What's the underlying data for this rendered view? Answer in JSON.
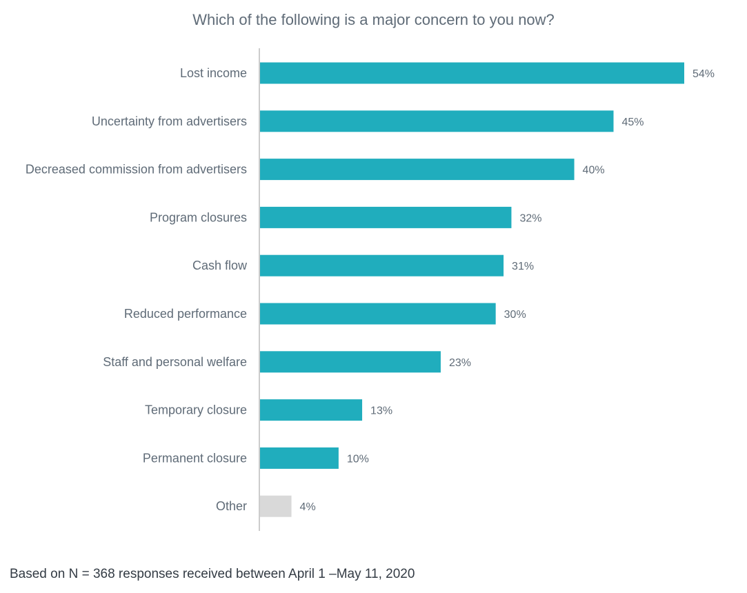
{
  "chart_data": {
    "type": "bar",
    "orientation": "horizontal",
    "title": "Which of the following is a major concern to you now?",
    "categories": [
      "Lost income",
      "Uncertainty from advertisers",
      "Decreased commission from advertisers",
      "Program closures",
      "Cash flow",
      "Reduced performance",
      "Staff and personal welfare",
      "Temporary closure",
      "Permanent closure",
      "Other"
    ],
    "values": [
      54,
      45,
      40,
      32,
      31,
      30,
      23,
      13,
      10,
      4
    ],
    "value_labels": [
      "54%",
      "45%",
      "40%",
      "32%",
      "31%",
      "30%",
      "23%",
      "13%",
      "10%",
      "4%"
    ],
    "unit": "%",
    "xlim": [
      0,
      54
    ],
    "grid": false,
    "legend": "none",
    "colors": {
      "bar": "#20adbd",
      "other_bar": "#d9d9d9",
      "axis": "#cccccc",
      "text": "#5f6b77"
    }
  },
  "footnote": "Based on N = 368 responses received between April 1 –May 11, 2020"
}
